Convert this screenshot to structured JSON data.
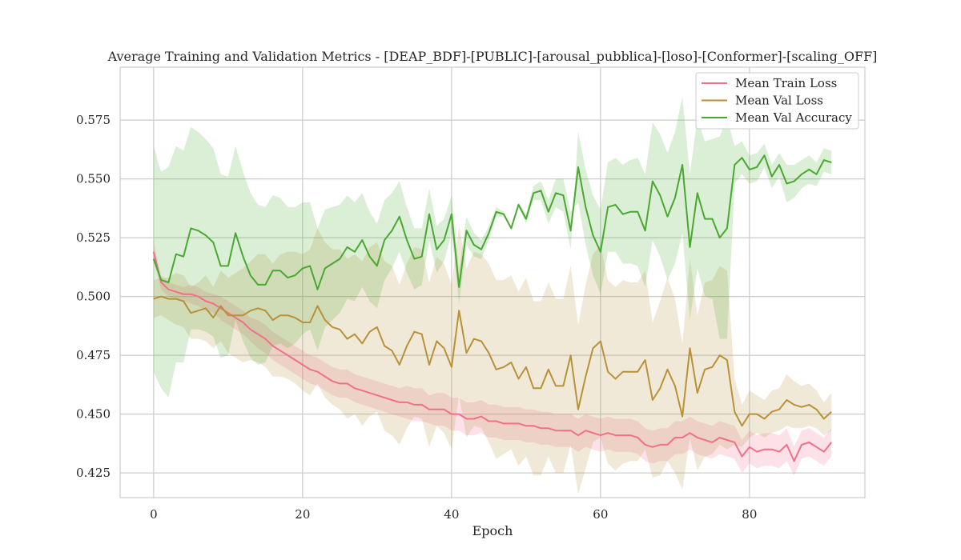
{
  "chart_data": {
    "type": "line",
    "title": "Average Training and Validation Metrics - [DEAP_BDF]-[PUBLIC]-[arousal_pubblica]-[loso]-[Conformer]-[scaling_OFF]",
    "xlabel": "Epoch",
    "ylabel": "",
    "xlim": [
      -4.5,
      95.5
    ],
    "ylim": [
      0.4145,
      0.5975
    ],
    "xticks": [
      0,
      20,
      40,
      60,
      80
    ],
    "yticks": [
      0.425,
      0.45,
      0.475,
      0.5,
      0.525,
      0.55,
      0.575
    ],
    "ytick_labels": [
      "0.425",
      "0.450",
      "0.475",
      "0.500",
      "0.525",
      "0.550",
      "0.575"
    ],
    "grid": true,
    "legend_position": "top-right",
    "x": [
      0,
      1,
      2,
      3,
      4,
      5,
      6,
      7,
      8,
      9,
      10,
      11,
      12,
      13,
      14,
      15,
      16,
      17,
      18,
      19,
      20,
      21,
      22,
      23,
      24,
      25,
      26,
      27,
      28,
      29,
      30,
      31,
      32,
      33,
      34,
      35,
      36,
      37,
      38,
      39,
      40,
      41,
      42,
      43,
      44,
      45,
      46,
      47,
      48,
      49,
      50,
      51,
      52,
      53,
      54,
      55,
      56,
      57,
      58,
      59,
      60,
      61,
      62,
      63,
      64,
      65,
      66,
      67,
      68,
      69,
      70,
      71,
      72,
      73,
      74,
      75,
      76,
      77,
      78,
      79,
      80,
      81,
      82,
      83,
      84,
      85,
      86,
      87,
      88,
      89,
      90,
      91
    ],
    "series": [
      {
        "name": "Mean Train Loss",
        "color": "#f0708a",
        "values": [
          0.519,
          0.506,
          0.503,
          0.502,
          0.501,
          0.501,
          0.5,
          0.498,
          0.497,
          0.495,
          0.493,
          0.491,
          0.489,
          0.486,
          0.484,
          0.482,
          0.479,
          0.477,
          0.475,
          0.473,
          0.471,
          0.469,
          0.468,
          0.466,
          0.464,
          0.463,
          0.463,
          0.461,
          0.46,
          0.459,
          0.458,
          0.457,
          0.456,
          0.455,
          0.455,
          0.454,
          0.454,
          0.452,
          0.452,
          0.452,
          0.45,
          0.45,
          0.448,
          0.448,
          0.449,
          0.447,
          0.447,
          0.446,
          0.446,
          0.446,
          0.445,
          0.445,
          0.444,
          0.444,
          0.443,
          0.443,
          0.443,
          0.441,
          0.443,
          0.442,
          0.441,
          0.442,
          0.441,
          0.441,
          0.441,
          0.44,
          0.437,
          0.436,
          0.437,
          0.437,
          0.44,
          0.44,
          0.442,
          0.44,
          0.439,
          0.438,
          0.44,
          0.439,
          0.438,
          0.432,
          0.436,
          0.434,
          0.435,
          0.435,
          0.434,
          0.437,
          0.43,
          0.437,
          0.438,
          0.436,
          0.434,
          0.438
        ],
        "band_low": [
          0.515,
          0.503,
          0.5,
          0.499,
          0.498,
          0.497,
          0.496,
          0.494,
          0.493,
          0.49,
          0.488,
          0.486,
          0.484,
          0.481,
          0.478,
          0.476,
          0.473,
          0.471,
          0.469,
          0.467,
          0.465,
          0.463,
          0.462,
          0.46,
          0.458,
          0.457,
          0.457,
          0.455,
          0.454,
          0.453,
          0.452,
          0.451,
          0.45,
          0.449,
          0.448,
          0.447,
          0.447,
          0.446,
          0.445,
          0.445,
          0.443,
          0.443,
          0.441,
          0.441,
          0.442,
          0.44,
          0.44,
          0.439,
          0.439,
          0.439,
          0.438,
          0.438,
          0.437,
          0.437,
          0.436,
          0.436,
          0.436,
          0.434,
          0.436,
          0.435,
          0.434,
          0.435,
          0.434,
          0.434,
          0.434,
          0.433,
          0.43,
          0.429,
          0.43,
          0.43,
          0.433,
          0.433,
          0.435,
          0.433,
          0.432,
          0.431,
          0.433,
          0.432,
          0.431,
          0.425,
          0.429,
          0.427,
          0.428,
          0.428,
          0.427,
          0.43,
          0.424,
          0.431,
          0.432,
          0.43,
          0.428,
          0.432
        ],
        "band_high": [
          0.523,
          0.509,
          0.506,
          0.505,
          0.504,
          0.505,
          0.504,
          0.502,
          0.501,
          0.5,
          0.498,
          0.496,
          0.494,
          0.491,
          0.49,
          0.488,
          0.485,
          0.483,
          0.481,
          0.479,
          0.477,
          0.475,
          0.474,
          0.472,
          0.47,
          0.469,
          0.469,
          0.467,
          0.466,
          0.465,
          0.464,
          0.463,
          0.462,
          0.461,
          0.462,
          0.461,
          0.461,
          0.458,
          0.459,
          0.459,
          0.457,
          0.457,
          0.455,
          0.455,
          0.456,
          0.454,
          0.454,
          0.453,
          0.453,
          0.453,
          0.452,
          0.452,
          0.451,
          0.451,
          0.45,
          0.45,
          0.45,
          0.448,
          0.45,
          0.449,
          0.448,
          0.449,
          0.448,
          0.448,
          0.448,
          0.447,
          0.444,
          0.443,
          0.444,
          0.444,
          0.447,
          0.447,
          0.449,
          0.447,
          0.446,
          0.445,
          0.447,
          0.446,
          0.445,
          0.439,
          0.443,
          0.441,
          0.442,
          0.442,
          0.441,
          0.444,
          0.436,
          0.443,
          0.444,
          0.442,
          0.44,
          0.444
        ]
      },
      {
        "name": "Mean Val Loss",
        "color": "#b8913a",
        "values": [
          0.499,
          0.5,
          0.499,
          0.499,
          0.498,
          0.493,
          0.494,
          0.495,
          0.491,
          0.496,
          0.492,
          0.492,
          0.492,
          0.494,
          0.495,
          0.494,
          0.49,
          0.492,
          0.492,
          0.491,
          0.489,
          0.489,
          0.496,
          0.49,
          0.487,
          0.486,
          0.482,
          0.484,
          0.48,
          0.485,
          0.487,
          0.479,
          0.477,
          0.471,
          0.479,
          0.485,
          0.484,
          0.471,
          0.481,
          0.478,
          0.47,
          0.494,
          0.476,
          0.482,
          0.481,
          0.476,
          0.469,
          0.47,
          0.472,
          0.465,
          0.47,
          0.461,
          0.461,
          0.469,
          0.462,
          0.462,
          0.475,
          0.452,
          0.466,
          0.478,
          0.481,
          0.468,
          0.465,
          0.468,
          0.468,
          0.468,
          0.473,
          0.456,
          0.461,
          0.469,
          0.462,
          0.449,
          0.478,
          0.459,
          0.469,
          0.47,
          0.475,
          0.473,
          0.451,
          0.445,
          0.45,
          0.45,
          0.448,
          0.451,
          0.452,
          0.456,
          0.454,
          0.453,
          0.454,
          0.452,
          0.448,
          0.451
        ],
        "band_low": [
          0.491,
          0.492,
          0.49,
          0.488,
          0.487,
          0.482,
          0.482,
          0.481,
          0.478,
          0.481,
          0.476,
          0.474,
          0.472,
          0.473,
          0.472,
          0.47,
          0.466,
          0.466,
          0.465,
          0.463,
          0.46,
          0.458,
          0.463,
          0.457,
          0.454,
          0.452,
          0.448,
          0.45,
          0.445,
          0.449,
          0.451,
          0.443,
          0.441,
          0.437,
          0.444,
          0.449,
          0.448,
          0.436,
          0.445,
          0.442,
          0.435,
          0.458,
          0.44,
          0.445,
          0.444,
          0.438,
          0.431,
          0.433,
          0.435,
          0.428,
          0.432,
          0.424,
          0.424,
          0.432,
          0.425,
          0.425,
          0.437,
          0.416,
          0.427,
          0.438,
          0.44,
          0.429,
          0.426,
          0.429,
          0.43,
          0.43,
          0.435,
          0.423,
          0.424,
          0.43,
          0.425,
          0.418,
          0.44,
          0.426,
          0.432,
          0.433,
          0.437,
          0.435,
          0.437,
          0.436,
          0.44,
          0.442,
          0.44,
          0.442,
          0.443,
          0.445,
          0.444,
          0.444,
          0.445,
          0.444,
          0.441,
          0.443
        ],
        "band_high": [
          0.507,
          0.508,
          0.508,
          0.51,
          0.509,
          0.504,
          0.506,
          0.509,
          0.504,
          0.511,
          0.508,
          0.51,
          0.512,
          0.515,
          0.518,
          0.518,
          0.514,
          0.518,
          0.519,
          0.519,
          0.518,
          0.52,
          0.529,
          0.523,
          0.52,
          0.52,
          0.516,
          0.518,
          0.515,
          0.521,
          0.523,
          0.515,
          0.513,
          0.505,
          0.514,
          0.521,
          0.52,
          0.506,
          0.517,
          0.514,
          0.505,
          0.53,
          0.512,
          0.519,
          0.518,
          0.514,
          0.507,
          0.507,
          0.509,
          0.502,
          0.508,
          0.498,
          0.498,
          0.506,
          0.499,
          0.499,
          0.513,
          0.488,
          0.505,
          0.518,
          0.522,
          0.507,
          0.504,
          0.507,
          0.506,
          0.506,
          0.511,
          0.489,
          0.498,
          0.508,
          0.499,
          0.48,
          0.516,
          0.492,
          0.506,
          0.507,
          0.513,
          0.511,
          0.465,
          0.454,
          0.46,
          0.458,
          0.456,
          0.46,
          0.461,
          0.467,
          0.464,
          0.462,
          0.463,
          0.46,
          0.455,
          0.459
        ]
      },
      {
        "name": "Mean Val Accuracy",
        "color": "#4aa832",
        "values": [
          0.516,
          0.507,
          0.506,
          0.518,
          0.517,
          0.529,
          0.528,
          0.526,
          0.523,
          0.513,
          0.513,
          0.527,
          0.517,
          0.509,
          0.505,
          0.505,
          0.511,
          0.511,
          0.508,
          0.509,
          0.512,
          0.513,
          0.503,
          0.512,
          0.514,
          0.516,
          0.521,
          0.519,
          0.524,
          0.517,
          0.513,
          0.524,
          0.528,
          0.534,
          0.524,
          0.516,
          0.517,
          0.535,
          0.52,
          0.524,
          0.535,
          0.504,
          0.528,
          0.522,
          0.52,
          0.527,
          0.536,
          0.535,
          0.529,
          0.539,
          0.533,
          0.544,
          0.545,
          0.536,
          0.544,
          0.543,
          0.528,
          0.555,
          0.538,
          0.526,
          0.519,
          0.538,
          0.539,
          0.535,
          0.536,
          0.536,
          0.528,
          0.549,
          0.543,
          0.534,
          0.542,
          0.556,
          0.521,
          0.544,
          0.533,
          0.533,
          0.525,
          0.529,
          0.556,
          0.559,
          0.554,
          0.555,
          0.56,
          0.551,
          0.556,
          0.548,
          0.549,
          0.552,
          0.554,
          0.552,
          0.558,
          0.557
        ],
        "band_low": [
          0.468,
          0.461,
          0.457,
          0.472,
          0.472,
          0.486,
          0.486,
          0.485,
          0.483,
          0.474,
          0.475,
          0.49,
          0.481,
          0.474,
          0.471,
          0.472,
          0.479,
          0.48,
          0.478,
          0.48,
          0.484,
          0.486,
          0.477,
          0.487,
          0.49,
          0.493,
          0.499,
          0.498,
          0.504,
          0.498,
          0.495,
          0.507,
          0.512,
          0.519,
          0.51,
          0.503,
          0.505,
          0.524,
          0.51,
          0.515,
          0.527,
          0.497,
          0.522,
          0.517,
          0.516,
          0.524,
          0.534,
          0.534,
          0.529,
          0.54,
          0.535,
          0.547,
          0.549,
          0.541,
          0.55,
          0.55,
          0.536,
          0.54,
          0.522,
          0.509,
          0.501,
          0.519,
          0.519,
          0.514,
          0.514,
          0.513,
          0.504,
          0.524,
          0.517,
          0.507,
          0.514,
          0.527,
          0.49,
          0.512,
          0.5,
          0.499,
          0.482,
          0.482,
          0.548,
          0.552,
          0.548,
          0.549,
          0.555,
          0.546,
          0.551,
          0.54,
          0.542,
          0.546,
          0.548,
          0.547,
          0.553,
          0.552
        ],
        "band_high": [
          0.564,
          0.553,
          0.555,
          0.564,
          0.562,
          0.572,
          0.57,
          0.567,
          0.563,
          0.552,
          0.551,
          0.564,
          0.553,
          0.544,
          0.539,
          0.538,
          0.543,
          0.542,
          0.538,
          0.538,
          0.54,
          0.54,
          0.529,
          0.537,
          0.538,
          0.539,
          0.543,
          0.54,
          0.544,
          0.536,
          0.531,
          0.541,
          0.544,
          0.549,
          0.538,
          0.529,
          0.529,
          0.546,
          0.53,
          0.533,
          0.543,
          0.511,
          0.534,
          0.527,
          0.524,
          0.53,
          0.538,
          0.536,
          0.529,
          0.538,
          0.531,
          0.541,
          0.541,
          0.531,
          0.538,
          0.536,
          0.52,
          0.57,
          0.554,
          0.543,
          0.537,
          0.557,
          0.559,
          0.556,
          0.558,
          0.559,
          0.552,
          0.574,
          0.569,
          0.561,
          0.57,
          0.585,
          0.552,
          0.576,
          0.566,
          0.567,
          0.568,
          0.576,
          0.564,
          0.566,
          0.56,
          0.561,
          0.565,
          0.556,
          0.561,
          0.556,
          0.556,
          0.558,
          0.56,
          0.557,
          0.563,
          0.562
        ]
      }
    ]
  }
}
